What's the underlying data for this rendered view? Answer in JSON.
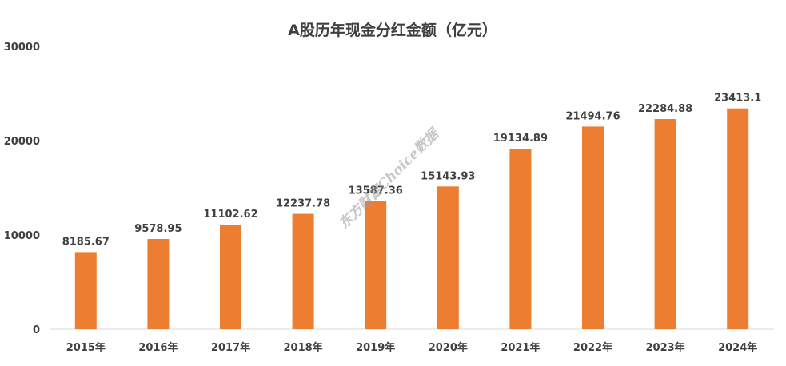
{
  "chart_data": {
    "type": "bar",
    "title": "A股历年现金分红金额（亿元）",
    "categories": [
      "2015年",
      "2016年",
      "2017年",
      "2018年",
      "2019年",
      "2020年",
      "2021年",
      "2022年",
      "2023年",
      "2024年"
    ],
    "values": [
      8185.67,
      9578.95,
      11102.62,
      12237.78,
      13587.36,
      15143.93,
      19134.89,
      21494.76,
      22284.88,
      23413.1
    ],
    "data_labels": [
      "8185.67",
      "9578.95",
      "11102.62",
      "12237.78",
      "13587.36",
      "15143.93",
      "19134.89",
      "21494.76",
      "22284.88",
      "23413.1"
    ],
    "y_ticks": [
      "0",
      "10000",
      "20000",
      "30000"
    ],
    "y_tick_values": [
      0,
      10000,
      20000,
      30000
    ],
    "xlabel": "",
    "ylabel": "",
    "ylim": [
      0,
      30000
    ],
    "grid": false,
    "legend": "none",
    "bar_color": "#ED7D31",
    "watermark": "东方财富Choice数据"
  }
}
